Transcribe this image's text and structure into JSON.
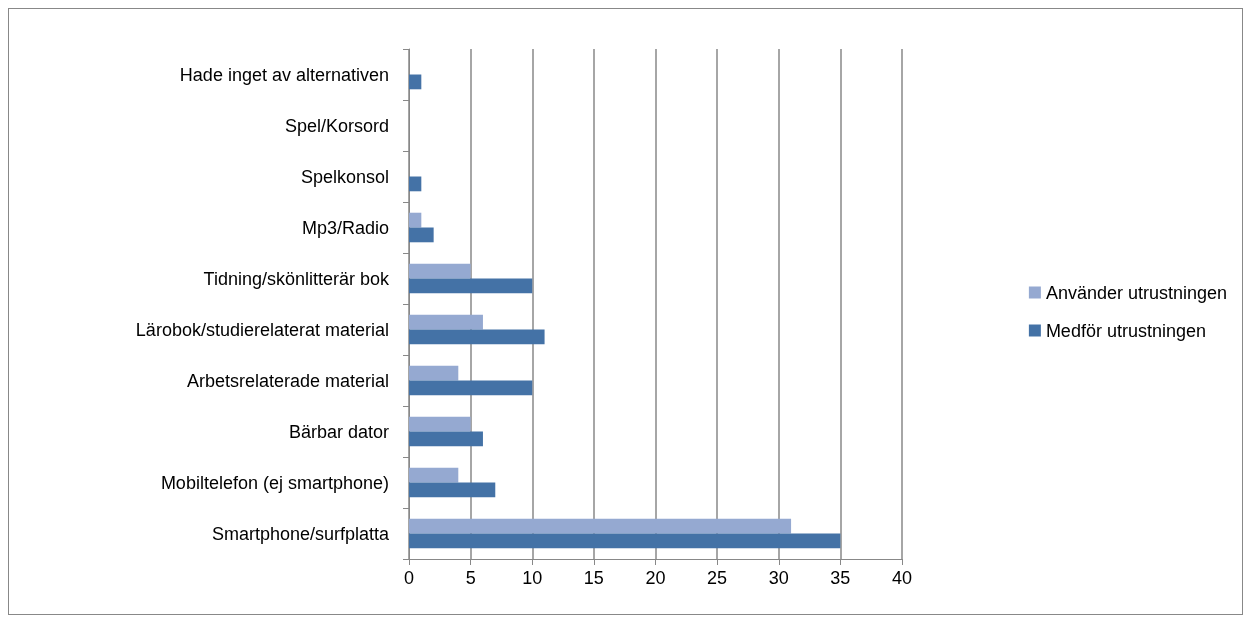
{
  "chart_data": {
    "type": "bar",
    "orientation": "horizontal",
    "categories": [
      "Hade inget av alternativen",
      "Spel/Korsord",
      "Spelkonsol",
      "Mp3/Radio",
      "Tidning/skönlitterär bok",
      "Lärobok/studierelaterat material",
      "Arbetsrelaterade material",
      "Bärbar dator",
      "Mobiltelefon (ej smartphone)",
      "Smartphone/surfplatta"
    ],
    "series": [
      {
        "name": "Använder utrustningen",
        "color": "#95a9d1",
        "values": [
          0,
          0,
          0,
          1,
          5,
          6,
          4,
          5,
          4,
          31
        ]
      },
      {
        "name": "Medför utrustningen",
        "color": "#4472a6",
        "values": [
          1,
          0,
          1,
          2,
          10,
          11,
          10,
          6,
          7,
          35
        ]
      }
    ],
    "xlim": [
      0,
      40
    ],
    "xticks": [
      0,
      5,
      10,
      15,
      20,
      25,
      30,
      35,
      40
    ],
    "grid": "x",
    "legend": "right"
  }
}
